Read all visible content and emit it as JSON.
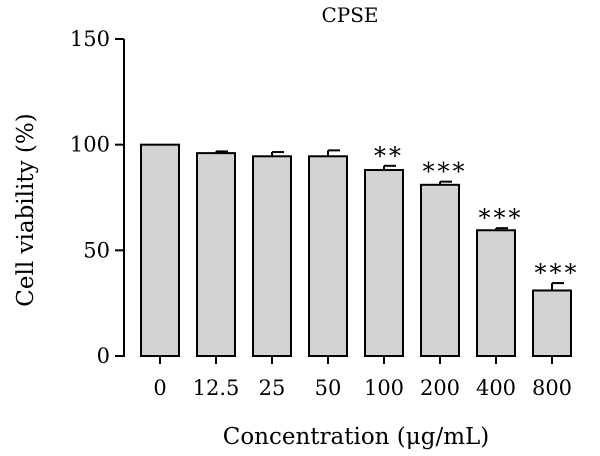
{
  "chart_data": {
    "type": "bar",
    "title": "CPSE",
    "xlabel": "Concentration (μg/mL)",
    "ylabel": "Cell viability (%)",
    "ylim": [
      0,
      150
    ],
    "yticks": [
      "0",
      "50",
      "100",
      "150"
    ],
    "grid": false,
    "categories": [
      "0",
      "12.5",
      "25",
      "50",
      "100",
      "200",
      "400",
      "800"
    ],
    "values": [
      100,
      96,
      94.5,
      94.5,
      88,
      81,
      59.5,
      31
    ],
    "errors": [
      0,
      0.8,
      2.0,
      2.8,
      2.0,
      1.5,
      1.0,
      3.5
    ],
    "annotations": [
      "",
      "",
      "",
      "",
      "**",
      "***",
      "***",
      "***"
    ],
    "bar_color": "#d3d3d3",
    "edge_color": "#000000"
  }
}
